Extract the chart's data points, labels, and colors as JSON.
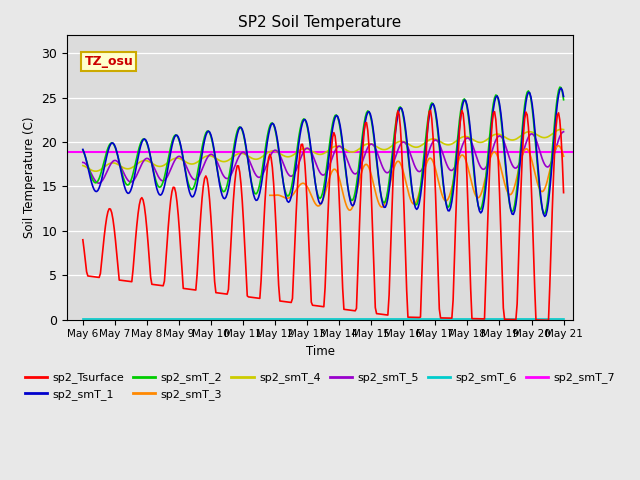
{
  "title": "SP2 Soil Temperature",
  "xlabel": "Time",
  "ylabel": "Soil Temperature (C)",
  "ylim": [
    0,
    32
  ],
  "xlim_days": [
    5.5,
    21.3
  ],
  "fig_bg_color": "#e8e8e8",
  "plot_bg_color": "#dcdcdc",
  "annotation_text": "TZ_osu",
  "annotation_color": "#cc0000",
  "annotation_bg": "#ffffcc",
  "annotation_border": "#ccaa00",
  "colors": {
    "sp2_Tsurface": "#ff0000",
    "sp2_smT_1": "#0000cc",
    "sp2_smT_2": "#00cc00",
    "sp2_smT_3": "#ff8800",
    "sp2_smT_4": "#cccc00",
    "sp2_smT_5": "#9900cc",
    "sp2_smT_6": "#00cccc",
    "sp2_smT_7": "#ff00ff"
  },
  "sp2_smT_7_value": 18.9,
  "tick_labels": [
    "May 6",
    "May 7",
    "May 8",
    "May 9",
    "May 10",
    "May 11",
    "May 12",
    "May 13",
    "May 14",
    "May 15",
    "May 16",
    "May 17",
    "May 18",
    "May 19",
    "May 20",
    "May 21"
  ],
  "tick_positions": [
    6,
    7,
    8,
    9,
    10,
    11,
    12,
    13,
    14,
    15,
    16,
    17,
    18,
    19,
    20,
    21
  ],
  "yticks": [
    0,
    5,
    10,
    15,
    20,
    25,
    30
  ]
}
